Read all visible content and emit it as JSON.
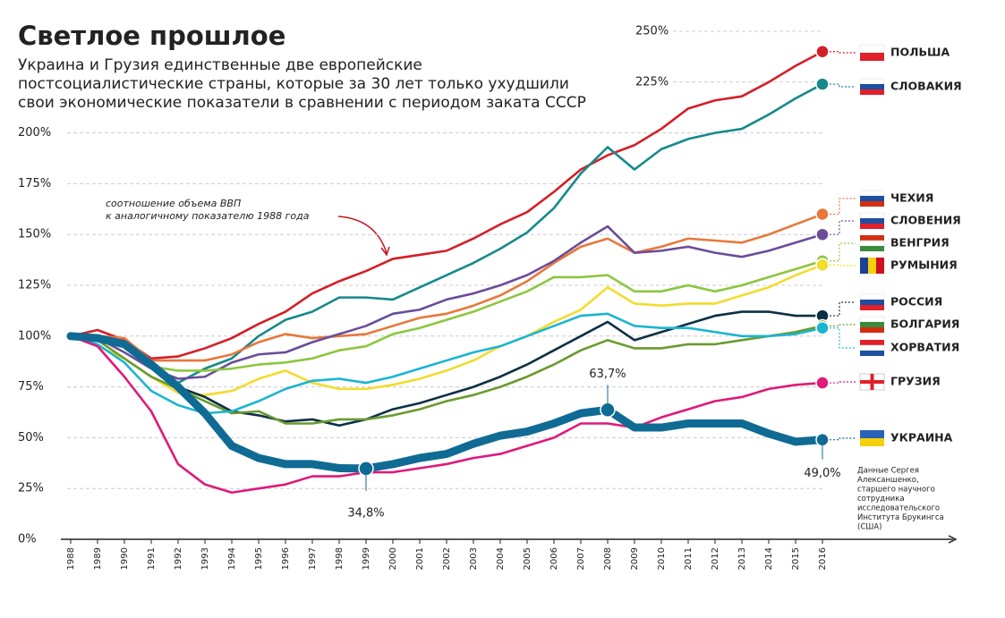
{
  "chart_data": {
    "type": "line",
    "title": "Светлое прошлое",
    "subtitle": [
      "Украина и Грузия единственные две европейские",
      "постсоциалистические страны, которые за 30 лет только ухудшили",
      "свои экономические показатели в сравнении с периодом заката СССР"
    ],
    "annotation": [
      "соотношение объема ВВП",
      "к аналогичному показателю 1988 года"
    ],
    "source": [
      "Данные Сергея",
      "Алексаншенко,",
      "старшего научного",
      "сотрудника",
      "исследовательского",
      "Института Брукингса",
      "(США)"
    ],
    "categories": [
      "1988",
      "1989",
      "1990",
      "1991",
      "1992",
      "1993",
      "1994",
      "1995",
      "1996",
      "1997",
      "1998",
      "1999",
      "2000",
      "2001",
      "2002",
      "2003",
      "2004",
      "2005",
      "2006",
      "2007",
      "2008",
      "2009",
      "2010",
      "2011",
      "2012",
      "2013",
      "2014",
      "2015",
      "2016"
    ],
    "ylim": [
      0,
      250
    ],
    "yticks": [
      {
        "value": 0,
        "label": "0%"
      },
      {
        "value": 25,
        "label": "25%"
      },
      {
        "value": 50,
        "label": "50%"
      },
      {
        "value": 75,
        "label": "75%"
      },
      {
        "value": 100,
        "label": "100%"
      },
      {
        "value": 125,
        "label": "125%"
      },
      {
        "value": 150,
        "label": "150%"
      },
      {
        "value": 175,
        "label": "175%"
      },
      {
        "value": 200,
        "label": "200%"
      },
      {
        "value": 225,
        "label": "225%"
      },
      {
        "value": 250,
        "label": "250%"
      }
    ],
    "grid": true,
    "series": [
      {
        "name": "ПОЛЬША",
        "color": "#d31f26",
        "values": [
          100,
          103,
          98,
          89,
          90,
          94,
          99,
          106,
          112,
          121,
          127,
          132,
          138,
          140,
          142,
          148,
          155,
          161,
          171,
          182,
          189,
          194,
          202,
          212,
          216,
          218,
          225,
          233,
          240
        ]
      },
      {
        "name": "СЛОВАКИЯ",
        "color": "#16898a",
        "values": [
          100,
          99,
          97,
          85,
          77,
          84,
          89,
          100,
          108,
          112,
          119,
          119,
          118,
          124,
          130,
          136,
          143,
          151,
          163,
          180,
          193,
          182,
          192,
          197,
          200,
          202,
          209,
          217,
          224
        ]
      },
      {
        "name": "ЧЕХИЯ",
        "color": "#e8773b",
        "values": [
          100,
          100,
          99,
          88,
          88,
          88,
          91,
          97,
          101,
          99,
          100,
          101,
          105,
          109,
          111,
          115,
          120,
          127,
          136,
          144,
          148,
          141,
          144,
          148,
          147,
          146,
          150,
          155,
          160
        ]
      },
      {
        "name": "СЛОВЕНИЯ",
        "color": "#6b4c9a",
        "values": [
          100,
          99,
          92,
          84,
          79,
          80,
          87,
          91,
          92,
          97,
          101,
          105,
          111,
          113,
          118,
          121,
          125,
          130,
          137,
          146,
          154,
          141,
          142,
          144,
          141,
          139,
          142,
          146,
          150
        ]
      },
      {
        "name": "ВЕНГРИЯ",
        "color": "#8cc63f",
        "values": [
          100,
          99,
          95,
          85,
          83,
          83,
          84,
          86,
          87,
          89,
          93,
          95,
          101,
          104,
          108,
          112,
          117,
          122,
          129,
          129,
          130,
          122,
          122,
          125,
          122,
          125,
          129,
          133,
          137
        ]
      },
      {
        "name": "РУМЫНИЯ",
        "color": "#f2dc2c",
        "values": [
          100,
          95,
          89,
          80,
          72,
          71,
          73,
          79,
          83,
          77,
          74,
          74,
          76,
          79,
          83,
          88,
          95,
          100,
          107,
          113,
          124,
          116,
          115,
          116,
          116,
          120,
          124,
          130,
          135
        ]
      },
      {
        "name": "РОССИЯ",
        "color": "#0d2f45",
        "values": [
          100,
          98,
          95,
          87,
          75,
          70,
          63,
          61,
          58,
          59,
          56,
          59,
          64,
          67,
          71,
          75,
          80,
          86,
          93,
          100,
          107,
          98,
          102,
          106,
          110,
          112,
          112,
          110,
          110
        ]
      },
      {
        "name": "БОЛГАРИЯ",
        "color": "#6a9a2e",
        "values": [
          100,
          98,
          89,
          80,
          74,
          68,
          62,
          63,
          57,
          57,
          59,
          59,
          61,
          64,
          68,
          71,
          75,
          80,
          86,
          93,
          98,
          94,
          94,
          96,
          96,
          98,
          100,
          102,
          105
        ]
      },
      {
        "name": "ХОРВАТИЯ",
        "color": "#1bb5d1",
        "values": [
          100,
          96,
          87,
          73,
          66,
          62,
          63,
          68,
          74,
          78,
          79,
          77,
          80,
          84,
          88,
          92,
          95,
          100,
          105,
          110,
          111,
          105,
          104,
          104,
          102,
          100,
          100,
          101,
          104
        ]
      },
      {
        "name": "ГРУЗИЯ",
        "color": "#e0197a",
        "values": [
          100,
          95,
          80,
          63,
          37,
          27,
          23,
          25,
          27,
          31,
          31,
          33,
          33,
          35,
          37,
          40,
          42,
          46,
          50,
          57,
          57,
          55,
          60,
          64,
          68,
          70,
          74,
          76,
          77
        ]
      },
      {
        "name": "УКРАИНА",
        "color": "#0f6b94",
        "values": [
          100,
          99,
          96,
          86,
          75,
          62,
          46,
          40,
          37,
          37,
          35,
          34.8,
          37,
          40,
          42,
          47,
          51,
          53,
          57,
          62,
          63.7,
          55,
          55,
          57,
          57,
          57,
          52,
          48,
          49.0
        ],
        "value_labels": [
          null,
          null,
          null,
          null,
          null,
          null,
          null,
          null,
          null,
          null,
          null,
          "34,8%",
          null,
          null,
          null,
          null,
          null,
          null,
          null,
          null,
          "63,7%",
          null,
          null,
          null,
          null,
          null,
          null,
          null,
          "49,0%"
        ]
      }
    ]
  }
}
